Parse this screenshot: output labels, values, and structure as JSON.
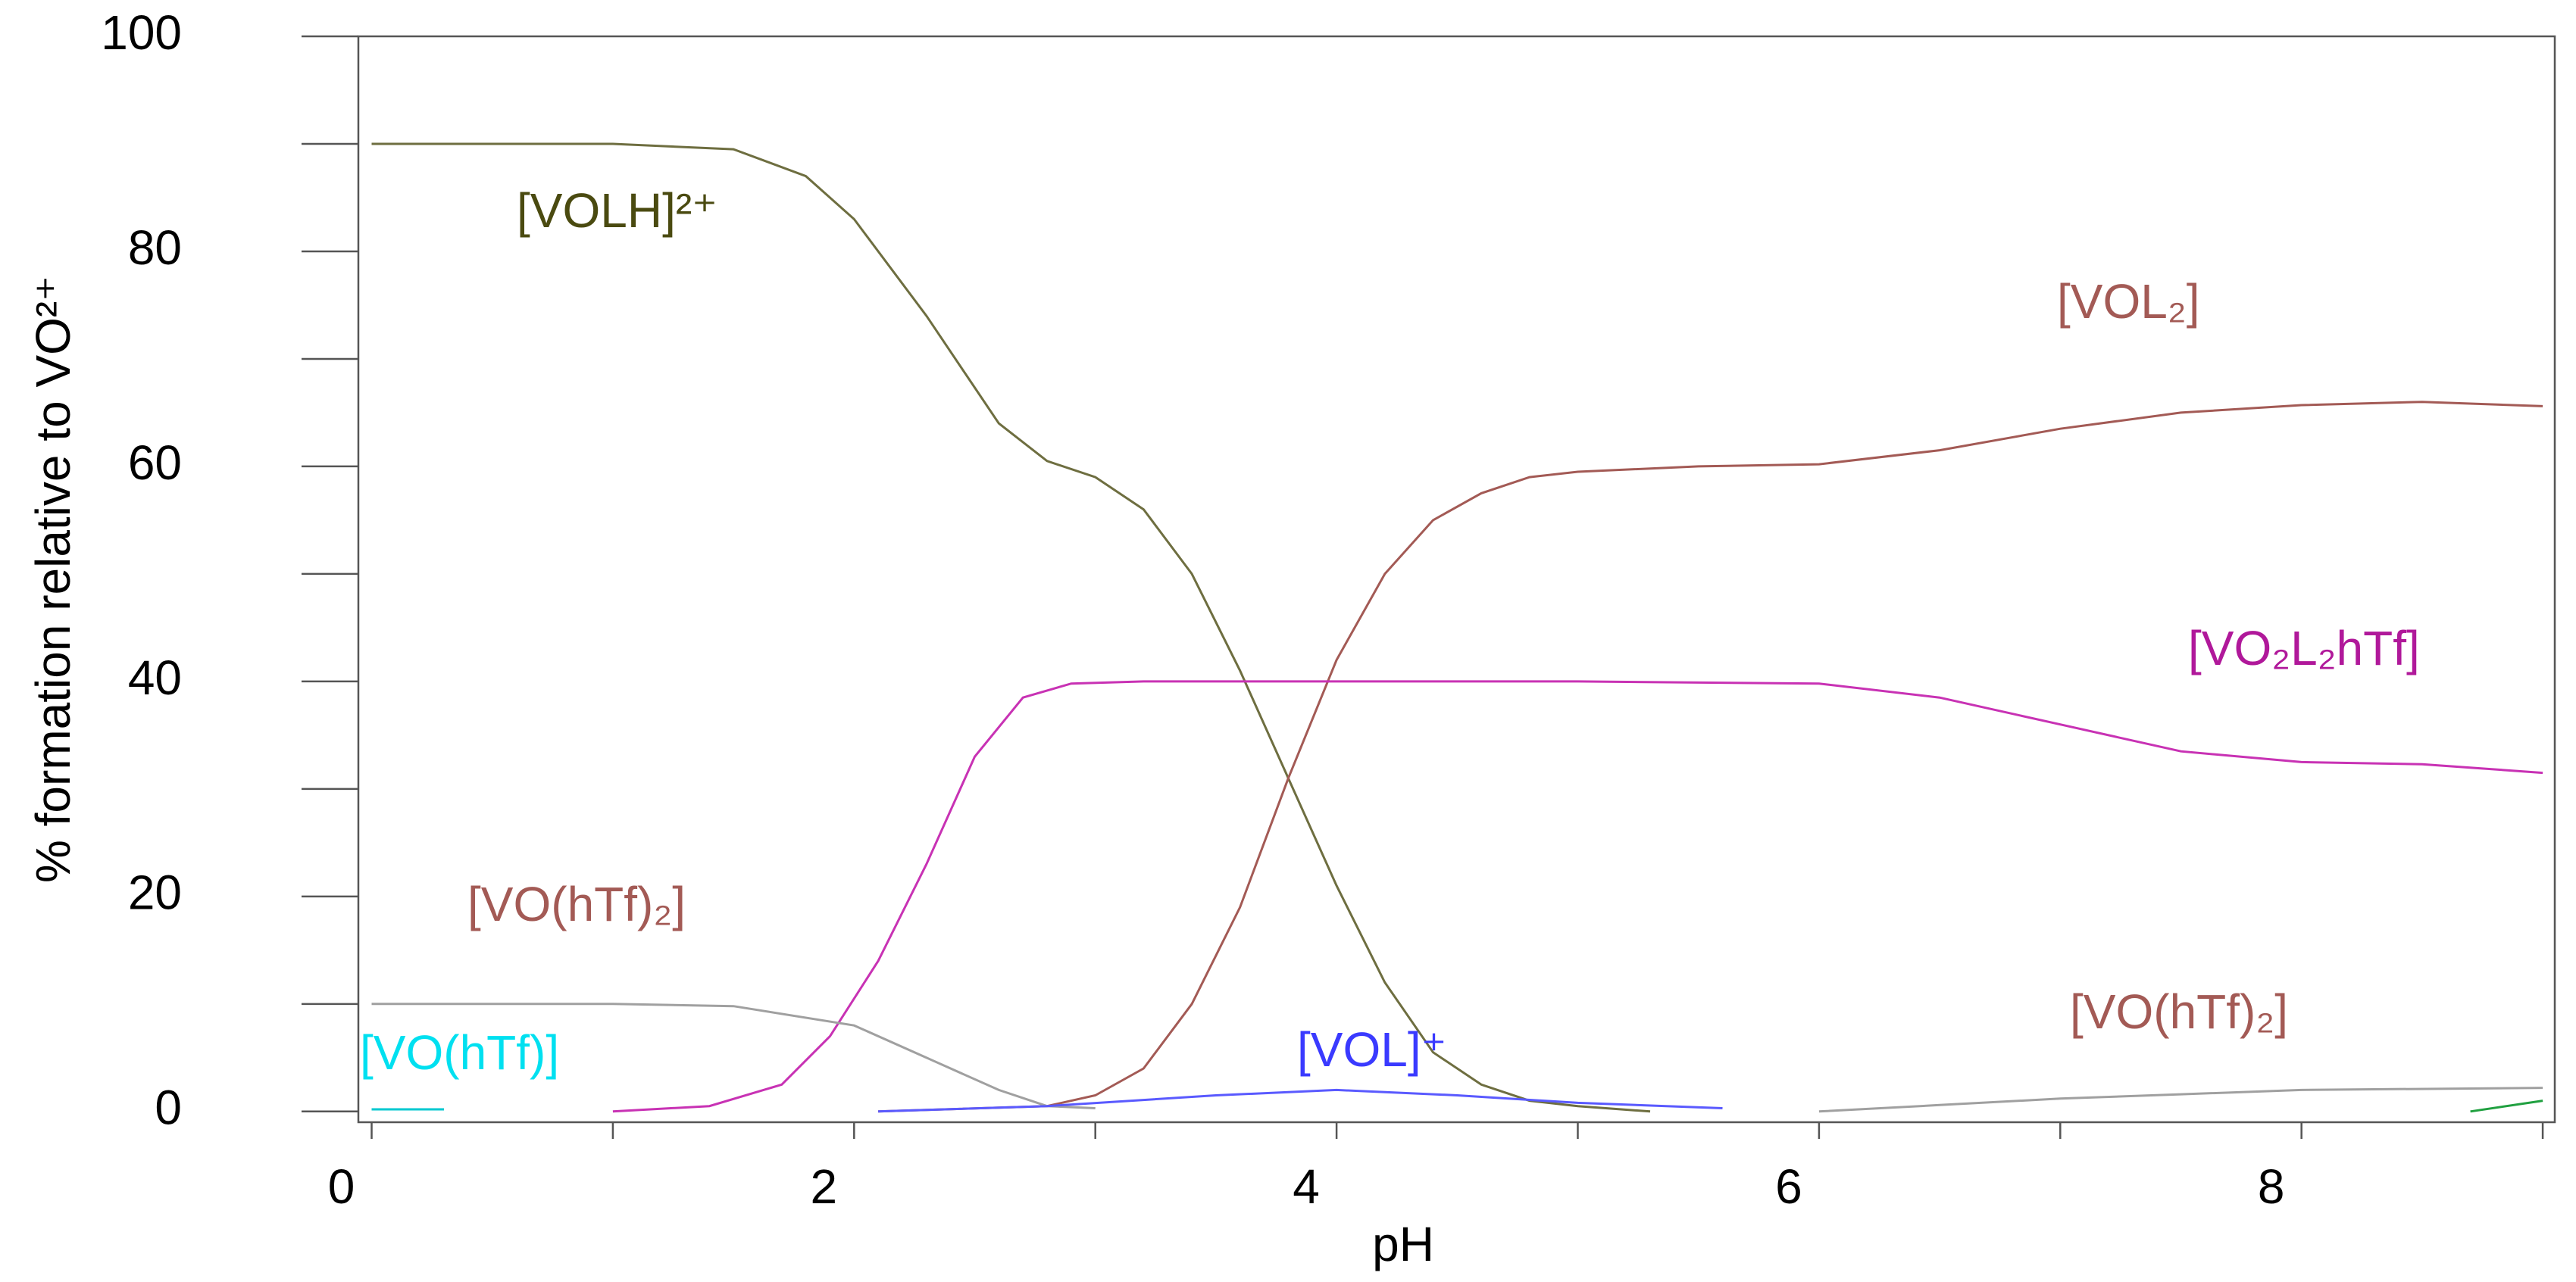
{
  "chart_data": {
    "type": "line",
    "x_label": "pH",
    "y_label": "% formation relative to VO²⁺",
    "xlim": [
      -0.055,
      9.05
    ],
    "xticks": [
      0,
      2,
      4,
      6,
      8
    ],
    "xticks_minor": [
      1,
      3,
      5,
      7,
      9
    ],
    "ylim": [
      -1,
      100
    ],
    "yticks": [
      0,
      20,
      40,
      60,
      80,
      100
    ],
    "yticks_minor": [
      10,
      30,
      50,
      70,
      90
    ],
    "series": [
      {
        "name": "[VOLH]²⁺",
        "color": "#6e6e40",
        "x": [
          0,
          1,
          1.5,
          1.8,
          2,
          2.3,
          2.6,
          2.8,
          3,
          3.2,
          3.4,
          3.6,
          3.8,
          4,
          4.2,
          4.4,
          4.6,
          4.8,
          5,
          5.3
        ],
        "values": [
          90,
          90,
          89.5,
          87,
          83,
          74,
          64,
          60.5,
          59,
          56,
          50,
          41,
          31,
          21,
          12,
          5.5,
          2.5,
          1,
          0.5,
          0
        ]
      },
      {
        "name": "[VOL₂]",
        "color": "#a35a55",
        "x": [
          2.1,
          2.8,
          3,
          3.2,
          3.4,
          3.6,
          3.8,
          4,
          4.2,
          4.4,
          4.6,
          4.8,
          5,
          5.5,
          6,
          6.5,
          7,
          7.5,
          8,
          8.5,
          9
        ],
        "values": [
          0,
          0.5,
          1.5,
          4,
          10,
          19,
          31,
          42,
          50,
          55,
          57.5,
          59,
          59.5,
          60,
          60.2,
          61.5,
          63.5,
          65,
          65.7,
          66,
          65.6
        ]
      },
      {
        "name": "[VO₂L₂hTf]",
        "color": "#c832b4",
        "x": [
          1,
          1.4,
          1.7,
          1.9,
          2.1,
          2.3,
          2.5,
          2.7,
          2.9,
          3.2,
          4,
          5,
          6,
          6.5,
          7,
          7.5,
          8,
          8.5,
          9
        ],
        "values": [
          0,
          0.5,
          2.5,
          7,
          14,
          23,
          33,
          38.5,
          39.8,
          40,
          40,
          40,
          39.8,
          38.5,
          36,
          33.5,
          32.5,
          32.3,
          31.5
        ]
      },
      {
        "name": "[VO(hTf)₂]",
        "color": "#a0a0a0",
        "x": [
          0,
          1,
          1.5,
          2,
          2.3,
          2.6,
          2.8,
          3,
          4.5,
          6,
          6.5,
          7,
          7.5,
          8,
          9
        ],
        "values": [
          10,
          10,
          9.8,
          8,
          5,
          2,
          0.5,
          0.3,
          null,
          0,
          0.6,
          1.2,
          1.6,
          2,
          2.2
        ]
      },
      {
        "name": "[VOL]⁺",
        "color": "#5a5aff",
        "x": [
          2.1,
          2.8,
          3.5,
          4,
          4.5,
          5,
          5.6
        ],
        "values": [
          0,
          0.5,
          1.5,
          2,
          1.5,
          0.8,
          0.3
        ]
      },
      {
        "name": "[VO(hTf)]",
        "color": "#00c8d0",
        "x": [
          0,
          0.3
        ],
        "values": [
          0.2,
          0.2
        ]
      },
      {
        "color": "#20a040",
        "x": [
          8.7,
          9
        ],
        "values": [
          0,
          1
        ]
      }
    ],
    "annotations": [
      {
        "text": "[VOLH]²⁺",
        "color": "#4a4a10"
      },
      {
        "text": "[VOL₂]",
        "color": "#a35a55"
      },
      {
        "text": "[VO₂L₂hTf]",
        "color": "#b0189a"
      },
      {
        "text": "[VO(hTf)₂]",
        "color": "#a35a55"
      },
      {
        "text": "[VO(hTf)₂]",
        "color": "#a35a55"
      },
      {
        "text": "[VO(hTf)]",
        "color": "#00e0f0"
      },
      {
        "text": "[VOL]⁺",
        "color": "#3a3aff"
      }
    ]
  }
}
